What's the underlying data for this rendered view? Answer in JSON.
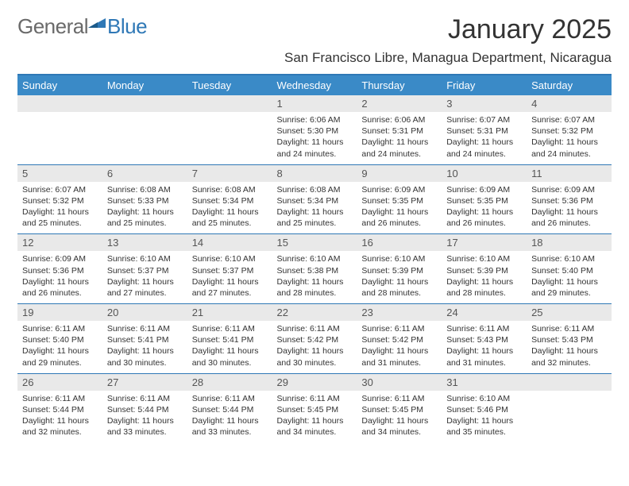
{
  "brand": {
    "general": "General",
    "blue": "Blue",
    "logo_color": "#2f78b6"
  },
  "header": {
    "title": "January 2025",
    "location": "San Francisco Libre, Managua Department, Nicaragua"
  },
  "colors": {
    "header_bg": "#3a8ac7",
    "border": "#2f78b6",
    "daynum_bg": "#e9e9e9",
    "text": "#333333"
  },
  "days_of_week": [
    "Sunday",
    "Monday",
    "Tuesday",
    "Wednesday",
    "Thursday",
    "Friday",
    "Saturday"
  ],
  "weeks": [
    [
      {
        "num": "",
        "sunrise": "",
        "sunset": "",
        "daylight1": "",
        "daylight2": ""
      },
      {
        "num": "",
        "sunrise": "",
        "sunset": "",
        "daylight1": "",
        "daylight2": ""
      },
      {
        "num": "",
        "sunrise": "",
        "sunset": "",
        "daylight1": "",
        "daylight2": ""
      },
      {
        "num": "1",
        "sunrise": "Sunrise: 6:06 AM",
        "sunset": "Sunset: 5:30 PM",
        "daylight1": "Daylight: 11 hours",
        "daylight2": "and 24 minutes."
      },
      {
        "num": "2",
        "sunrise": "Sunrise: 6:06 AM",
        "sunset": "Sunset: 5:31 PM",
        "daylight1": "Daylight: 11 hours",
        "daylight2": "and 24 minutes."
      },
      {
        "num": "3",
        "sunrise": "Sunrise: 6:07 AM",
        "sunset": "Sunset: 5:31 PM",
        "daylight1": "Daylight: 11 hours",
        "daylight2": "and 24 minutes."
      },
      {
        "num": "4",
        "sunrise": "Sunrise: 6:07 AM",
        "sunset": "Sunset: 5:32 PM",
        "daylight1": "Daylight: 11 hours",
        "daylight2": "and 24 minutes."
      }
    ],
    [
      {
        "num": "5",
        "sunrise": "Sunrise: 6:07 AM",
        "sunset": "Sunset: 5:32 PM",
        "daylight1": "Daylight: 11 hours",
        "daylight2": "and 25 minutes."
      },
      {
        "num": "6",
        "sunrise": "Sunrise: 6:08 AM",
        "sunset": "Sunset: 5:33 PM",
        "daylight1": "Daylight: 11 hours",
        "daylight2": "and 25 minutes."
      },
      {
        "num": "7",
        "sunrise": "Sunrise: 6:08 AM",
        "sunset": "Sunset: 5:34 PM",
        "daylight1": "Daylight: 11 hours",
        "daylight2": "and 25 minutes."
      },
      {
        "num": "8",
        "sunrise": "Sunrise: 6:08 AM",
        "sunset": "Sunset: 5:34 PM",
        "daylight1": "Daylight: 11 hours",
        "daylight2": "and 25 minutes."
      },
      {
        "num": "9",
        "sunrise": "Sunrise: 6:09 AM",
        "sunset": "Sunset: 5:35 PM",
        "daylight1": "Daylight: 11 hours",
        "daylight2": "and 26 minutes."
      },
      {
        "num": "10",
        "sunrise": "Sunrise: 6:09 AM",
        "sunset": "Sunset: 5:35 PM",
        "daylight1": "Daylight: 11 hours",
        "daylight2": "and 26 minutes."
      },
      {
        "num": "11",
        "sunrise": "Sunrise: 6:09 AM",
        "sunset": "Sunset: 5:36 PM",
        "daylight1": "Daylight: 11 hours",
        "daylight2": "and 26 minutes."
      }
    ],
    [
      {
        "num": "12",
        "sunrise": "Sunrise: 6:09 AM",
        "sunset": "Sunset: 5:36 PM",
        "daylight1": "Daylight: 11 hours",
        "daylight2": "and 26 minutes."
      },
      {
        "num": "13",
        "sunrise": "Sunrise: 6:10 AM",
        "sunset": "Sunset: 5:37 PM",
        "daylight1": "Daylight: 11 hours",
        "daylight2": "and 27 minutes."
      },
      {
        "num": "14",
        "sunrise": "Sunrise: 6:10 AM",
        "sunset": "Sunset: 5:37 PM",
        "daylight1": "Daylight: 11 hours",
        "daylight2": "and 27 minutes."
      },
      {
        "num": "15",
        "sunrise": "Sunrise: 6:10 AM",
        "sunset": "Sunset: 5:38 PM",
        "daylight1": "Daylight: 11 hours",
        "daylight2": "and 28 minutes."
      },
      {
        "num": "16",
        "sunrise": "Sunrise: 6:10 AM",
        "sunset": "Sunset: 5:39 PM",
        "daylight1": "Daylight: 11 hours",
        "daylight2": "and 28 minutes."
      },
      {
        "num": "17",
        "sunrise": "Sunrise: 6:10 AM",
        "sunset": "Sunset: 5:39 PM",
        "daylight1": "Daylight: 11 hours",
        "daylight2": "and 28 minutes."
      },
      {
        "num": "18",
        "sunrise": "Sunrise: 6:10 AM",
        "sunset": "Sunset: 5:40 PM",
        "daylight1": "Daylight: 11 hours",
        "daylight2": "and 29 minutes."
      }
    ],
    [
      {
        "num": "19",
        "sunrise": "Sunrise: 6:11 AM",
        "sunset": "Sunset: 5:40 PM",
        "daylight1": "Daylight: 11 hours",
        "daylight2": "and 29 minutes."
      },
      {
        "num": "20",
        "sunrise": "Sunrise: 6:11 AM",
        "sunset": "Sunset: 5:41 PM",
        "daylight1": "Daylight: 11 hours",
        "daylight2": "and 30 minutes."
      },
      {
        "num": "21",
        "sunrise": "Sunrise: 6:11 AM",
        "sunset": "Sunset: 5:41 PM",
        "daylight1": "Daylight: 11 hours",
        "daylight2": "and 30 minutes."
      },
      {
        "num": "22",
        "sunrise": "Sunrise: 6:11 AM",
        "sunset": "Sunset: 5:42 PM",
        "daylight1": "Daylight: 11 hours",
        "daylight2": "and 30 minutes."
      },
      {
        "num": "23",
        "sunrise": "Sunrise: 6:11 AM",
        "sunset": "Sunset: 5:42 PM",
        "daylight1": "Daylight: 11 hours",
        "daylight2": "and 31 minutes."
      },
      {
        "num": "24",
        "sunrise": "Sunrise: 6:11 AM",
        "sunset": "Sunset: 5:43 PM",
        "daylight1": "Daylight: 11 hours",
        "daylight2": "and 31 minutes."
      },
      {
        "num": "25",
        "sunrise": "Sunrise: 6:11 AM",
        "sunset": "Sunset: 5:43 PM",
        "daylight1": "Daylight: 11 hours",
        "daylight2": "and 32 minutes."
      }
    ],
    [
      {
        "num": "26",
        "sunrise": "Sunrise: 6:11 AM",
        "sunset": "Sunset: 5:44 PM",
        "daylight1": "Daylight: 11 hours",
        "daylight2": "and 32 minutes."
      },
      {
        "num": "27",
        "sunrise": "Sunrise: 6:11 AM",
        "sunset": "Sunset: 5:44 PM",
        "daylight1": "Daylight: 11 hours",
        "daylight2": "and 33 minutes."
      },
      {
        "num": "28",
        "sunrise": "Sunrise: 6:11 AM",
        "sunset": "Sunset: 5:44 PM",
        "daylight1": "Daylight: 11 hours",
        "daylight2": "and 33 minutes."
      },
      {
        "num": "29",
        "sunrise": "Sunrise: 6:11 AM",
        "sunset": "Sunset: 5:45 PM",
        "daylight1": "Daylight: 11 hours",
        "daylight2": "and 34 minutes."
      },
      {
        "num": "30",
        "sunrise": "Sunrise: 6:11 AM",
        "sunset": "Sunset: 5:45 PM",
        "daylight1": "Daylight: 11 hours",
        "daylight2": "and 34 minutes."
      },
      {
        "num": "31",
        "sunrise": "Sunrise: 6:10 AM",
        "sunset": "Sunset: 5:46 PM",
        "daylight1": "Daylight: 11 hours",
        "daylight2": "and 35 minutes."
      },
      {
        "num": "",
        "sunrise": "",
        "sunset": "",
        "daylight1": "",
        "daylight2": ""
      }
    ]
  ]
}
